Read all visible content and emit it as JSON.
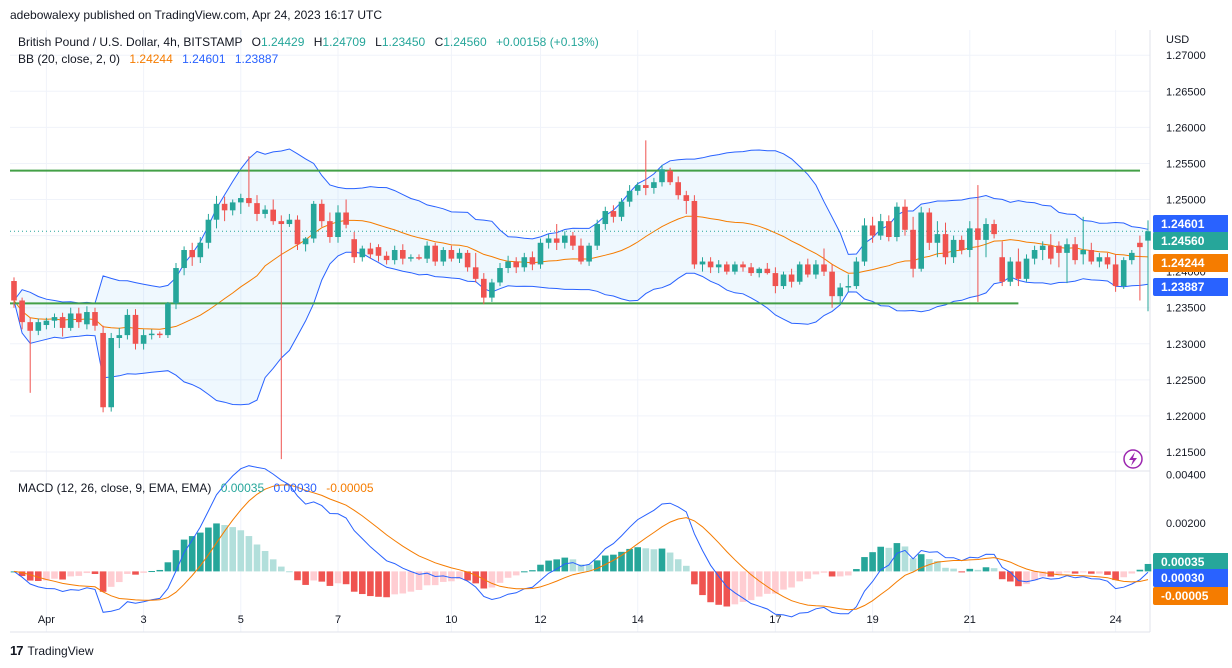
{
  "header": {
    "published": "adebowalexy published on TradingView.com, Apr 24, 2023 16:17 UTC",
    "symbol": "British Pound / U.S. Dollar, 4h, BITSTAMP",
    "o_label": "O",
    "o_value": "1.24429",
    "h_label": "H",
    "h_value": "1.24709",
    "l_label": "L",
    "l_value": "1.23450",
    "c_label": "C",
    "c_value": "1.24560",
    "change": "+0.00158 (+0.13%)",
    "bb_label": "BB (20, close, 2, 0)",
    "bb_basis": "1.24244",
    "bb_upper": "1.24601",
    "bb_lower": "1.23887",
    "macd_label": "MACD (12, 26, close, 9, EMA, EMA)",
    "macd_hist": "0.00035",
    "macd_line": "0.00030",
    "macd_signal": "-0.00005",
    "currency": "USD"
  },
  "footer": {
    "brand": "TradingView",
    "logo_icon": "tradingview-logo-icon"
  },
  "colors": {
    "up": "#26a69a",
    "down": "#ef5350",
    "band": "#2962ff",
    "basis": "#f57c00",
    "level": "#43a047",
    "hist_up": "#26a69a",
    "hist_up_fade": "#b2dfdb",
    "hist_down": "#ef5350",
    "hist_down_fade": "#ffcdd2",
    "macd": "#2962ff",
    "signal": "#f57c00"
  },
  "chart_data": {
    "type": "candlestick",
    "instrument": "GBPUSD",
    "timeframe": "4h",
    "price_axis": {
      "ticks": [
        "1.27000",
        "1.26500",
        "1.26000",
        "1.25500",
        "1.25000",
        "1.24500",
        "1.24000",
        "1.23500",
        "1.23000",
        "1.22500",
        "1.22000",
        "1.21500"
      ],
      "range": [
        1.2125,
        1.2735
      ]
    },
    "macd_axis": {
      "ticks": [
        "0.00400",
        "0.00200"
      ],
      "range": [
        -0.0025,
        0.0041
      ]
    },
    "x_labels": [
      {
        "label": "Apr",
        "index": 4
      },
      {
        "label": "3",
        "index": 16
      },
      {
        "label": "5",
        "index": 28
      },
      {
        "label": "7",
        "index": 40
      },
      {
        "label": "10",
        "index": 54
      },
      {
        "label": "12",
        "index": 65
      },
      {
        "label": "14",
        "index": 77
      },
      {
        "label": "17",
        "index": 94
      },
      {
        "label": "19",
        "index": 106
      },
      {
        "label": "21",
        "index": 118
      },
      {
        "label": "24",
        "index": 136
      }
    ],
    "support_level": 1.2356,
    "resistance_level": 1.254,
    "last_price": 1.2456,
    "badges": [
      {
        "value": "1.24601",
        "kind": "band"
      },
      {
        "value": "1.24560",
        "kind": "up"
      },
      {
        "value": "1.24244",
        "kind": "basis"
      },
      {
        "value": "1.23887",
        "kind": "band"
      },
      {
        "value": "0.00035",
        "kind": "up"
      },
      {
        "value": "0.00030",
        "kind": "band"
      },
      {
        "value": "-0.00005",
        "kind": "basis"
      }
    ],
    "candles": [
      [
        1.2387,
        1.2392,
        1.235,
        1.236
      ],
      [
        1.236,
        1.2364,
        1.232,
        1.233
      ],
      [
        1.233,
        1.2336,
        1.2232,
        1.2318
      ],
      [
        1.2318,
        1.2335,
        1.2312,
        1.233
      ],
      [
        1.2326,
        1.2336,
        1.232,
        1.2332
      ],
      [
        1.2332,
        1.2342,
        1.2322,
        1.2337
      ],
      [
        1.2337,
        1.2343,
        1.231,
        1.2322
      ],
      [
        1.2322,
        1.235,
        1.2318,
        1.2342
      ],
      [
        1.2342,
        1.235,
        1.2322,
        1.233
      ],
      [
        1.2327,
        1.2352,
        1.232,
        1.2344
      ],
      [
        1.2344,
        1.235,
        1.2318,
        1.2325
      ],
      [
        1.2315,
        1.2325,
        1.2205,
        1.2212
      ],
      [
        1.2212,
        1.2315,
        1.2206,
        1.2308
      ],
      [
        1.2308,
        1.2322,
        1.2294,
        1.2312
      ],
      [
        1.2312,
        1.2348,
        1.2306,
        1.234
      ],
      [
        1.234,
        1.2348,
        1.2292,
        1.23
      ],
      [
        1.23,
        1.232,
        1.2292,
        1.2312
      ],
      [
        1.2312,
        1.232,
        1.2306,
        1.2314
      ],
      [
        1.2314,
        1.2317,
        1.2308,
        1.2312
      ],
      [
        1.2312,
        1.2358,
        1.2308,
        1.2356
      ],
      [
        1.2356,
        1.2412,
        1.2348,
        1.2405
      ],
      [
        1.2405,
        1.2435,
        1.2395,
        1.243
      ],
      [
        1.243,
        1.244,
        1.2408,
        1.242
      ],
      [
        1.242,
        1.2448,
        1.2412,
        1.244
      ],
      [
        1.244,
        1.248,
        1.2432,
        1.2472
      ],
      [
        1.2472,
        1.2505,
        1.246,
        1.2494
      ],
      [
        1.2494,
        1.2504,
        1.247,
        1.2485
      ],
      [
        1.2485,
        1.25,
        1.2478,
        1.2496
      ],
      [
        1.2496,
        1.2508,
        1.248,
        1.2502
      ],
      [
        1.2502,
        1.256,
        1.249,
        1.2495
      ],
      [
        1.2495,
        1.2506,
        1.247,
        1.248
      ],
      [
        1.248,
        1.2492,
        1.2474,
        1.2486
      ],
      [
        1.2486,
        1.25,
        1.2465,
        1.247
      ],
      [
        1.247,
        1.2478,
        1.214,
        1.2466
      ],
      [
        1.2466,
        1.248,
        1.2462,
        1.2472
      ],
      [
        1.2472,
        1.2478,
        1.243,
        1.2438
      ],
      [
        1.2438,
        1.2448,
        1.2428,
        1.2446
      ],
      [
        1.2446,
        1.2498,
        1.244,
        1.2494
      ],
      [
        1.2494,
        1.25,
        1.2462,
        1.247
      ],
      [
        1.247,
        1.2482,
        1.244,
        1.2448
      ],
      [
        1.2448,
        1.2492,
        1.244,
        1.2482
      ],
      [
        1.2482,
        1.25,
        1.246,
        1.2465
      ],
      [
        1.2445,
        1.2455,
        1.2412,
        1.242
      ],
      [
        1.242,
        1.2436,
        1.2414,
        1.2432
      ],
      [
        1.2432,
        1.244,
        1.2418,
        1.2424
      ],
      [
        1.2434,
        1.2438,
        1.2414,
        1.2422
      ],
      [
        1.2422,
        1.2428,
        1.241,
        1.2416
      ],
      [
        1.2416,
        1.2436,
        1.241,
        1.243
      ],
      [
        1.243,
        1.2438,
        1.241,
        1.2418
      ],
      [
        1.2418,
        1.2424,
        1.2414,
        1.242
      ],
      [
        1.242,
        1.2424,
        1.2416,
        1.2418
      ],
      [
        1.2418,
        1.2442,
        1.2412,
        1.2436
      ],
      [
        1.2436,
        1.244,
        1.2408,
        1.2414
      ],
      [
        1.2414,
        1.2434,
        1.2408,
        1.243
      ],
      [
        1.243,
        1.2436,
        1.2414,
        1.2418
      ],
      [
        1.2418,
        1.2432,
        1.2412,
        1.2426
      ],
      [
        1.2426,
        1.243,
        1.24,
        1.2406
      ],
      [
        1.2406,
        1.2426,
        1.2385,
        1.239
      ],
      [
        1.239,
        1.2398,
        1.2355,
        1.2364
      ],
      [
        1.2364,
        1.239,
        1.2358,
        1.2385
      ],
      [
        1.2385,
        1.2412,
        1.238,
        1.2405
      ],
      [
        1.2405,
        1.2422,
        1.2398,
        1.2414
      ],
      [
        1.2414,
        1.242,
        1.2398,
        1.2406
      ],
      [
        1.2406,
        1.2426,
        1.24,
        1.242
      ],
      [
        1.242,
        1.2428,
        1.2402,
        1.241
      ],
      [
        1.241,
        1.2446,
        1.2404,
        1.244
      ],
      [
        1.244,
        1.2452,
        1.2432,
        1.2446
      ],
      [
        1.2446,
        1.2466,
        1.243,
        1.244
      ],
      [
        1.244,
        1.2456,
        1.2432,
        1.245
      ],
      [
        1.245,
        1.2455,
        1.243,
        1.2436
      ],
      [
        1.2436,
        1.2446,
        1.241,
        1.2414
      ],
      [
        1.2414,
        1.244,
        1.2408,
        1.2436
      ],
      [
        1.2436,
        1.2472,
        1.243,
        1.2466
      ],
      [
        1.2466,
        1.249,
        1.2458,
        1.2484
      ],
      [
        1.2484,
        1.2492,
        1.2468,
        1.2476
      ],
      [
        1.2476,
        1.2502,
        1.247,
        1.2497
      ],
      [
        1.2497,
        1.252,
        1.249,
        1.2512
      ],
      [
        1.2512,
        1.2524,
        1.2506,
        1.252
      ],
      [
        1.252,
        1.2582,
        1.2506,
        1.2516
      ],
      [
        1.2516,
        1.253,
        1.2508,
        1.2524
      ],
      [
        1.2524,
        1.2548,
        1.2518,
        1.2542
      ],
      [
        1.254,
        1.2544,
        1.252,
        1.2524
      ],
      [
        1.2524,
        1.2532,
        1.25,
        1.2506
      ],
      [
        1.2506,
        1.2512,
        1.248,
        1.2498
      ],
      [
        1.2498,
        1.2506,
        1.2404,
        1.241
      ],
      [
        1.241,
        1.242,
        1.24,
        1.2414
      ],
      [
        1.2414,
        1.242,
        1.2398,
        1.2406
      ],
      [
        1.2406,
        1.2416,
        1.2398,
        1.241
      ],
      [
        1.241,
        1.2414,
        1.2396,
        1.24
      ],
      [
        1.24,
        1.2414,
        1.2396,
        1.241
      ],
      [
        1.241,
        1.2414,
        1.24,
        1.2406
      ],
      [
        1.2406,
        1.2412,
        1.2394,
        1.2398
      ],
      [
        1.2398,
        1.2406,
        1.2392,
        1.2404
      ],
      [
        1.2404,
        1.2412,
        1.2396,
        1.2398
      ],
      [
        1.2398,
        1.2406,
        1.237,
        1.238
      ],
      [
        1.238,
        1.24,
        1.2376,
        1.2396
      ],
      [
        1.2396,
        1.2404,
        1.2378,
        1.2386
      ],
      [
        1.2386,
        1.2414,
        1.2382,
        1.241
      ],
      [
        1.241,
        1.2418,
        1.2392,
        1.2396
      ],
      [
        1.2396,
        1.2416,
        1.239,
        1.241
      ],
      [
        1.241,
        1.2432,
        1.2394,
        1.24
      ],
      [
        1.24,
        1.241,
        1.235,
        1.2366
      ],
      [
        1.2366,
        1.2384,
        1.2354,
        1.2378
      ],
      [
        1.2378,
        1.2396,
        1.2372,
        1.238
      ],
      [
        1.238,
        1.242,
        1.2376,
        1.2414
      ],
      [
        1.2414,
        1.2474,
        1.2408,
        1.2464
      ],
      [
        1.2464,
        1.2476,
        1.244,
        1.245
      ],
      [
        1.245,
        1.248,
        1.2444,
        1.247
      ],
      [
        1.247,
        1.2478,
        1.2442,
        1.2448
      ],
      [
        1.2448,
        1.2496,
        1.2442,
        1.249
      ],
      [
        1.249,
        1.25,
        1.245,
        1.2458
      ],
      [
        1.2458,
        1.2476,
        1.2392,
        1.2404
      ],
      [
        1.2404,
        1.249,
        1.24,
        1.2482
      ],
      [
        1.2482,
        1.2488,
        1.243,
        1.244
      ],
      [
        1.244,
        1.247,
        1.242,
        1.2452
      ],
      [
        1.2452,
        1.2468,
        1.241,
        1.242
      ],
      [
        1.242,
        1.245,
        1.2412,
        1.2444
      ],
      [
        1.2444,
        1.245,
        1.2424,
        1.243
      ],
      [
        1.243,
        1.247,
        1.242,
        1.246
      ],
      [
        1.246,
        1.252,
        1.2358,
        1.2444
      ],
      [
        1.2444,
        1.2474,
        1.242,
        1.2466
      ],
      [
        1.2466,
        1.2472,
        1.2446,
        1.2452
      ],
      [
        1.242,
        1.2442,
        1.238,
        1.2386
      ],
      [
        1.2386,
        1.242,
        1.238,
        1.2414
      ],
      [
        1.2414,
        1.2432,
        1.238,
        1.239
      ],
      [
        1.239,
        1.2424,
        1.2386,
        1.2418
      ],
      [
        1.2418,
        1.2436,
        1.241,
        1.243
      ],
      [
        1.243,
        1.2442,
        1.2416,
        1.2436
      ],
      [
        1.2436,
        1.2452,
        1.241,
        1.2418
      ],
      [
        1.2436,
        1.2442,
        1.2406,
        1.2426
      ],
      [
        1.2426,
        1.2446,
        1.2384,
        1.2438
      ],
      [
        1.2438,
        1.2448,
        1.241,
        1.2416
      ],
      [
        1.2424,
        1.2476,
        1.241,
        1.243
      ],
      [
        1.243,
        1.244,
        1.241,
        1.2414
      ],
      [
        1.2414,
        1.2426,
        1.2406,
        1.242
      ],
      [
        1.242,
        1.2426,
        1.2404,
        1.241
      ],
      [
        1.241,
        1.2424,
        1.2372,
        1.238
      ],
      [
        1.238,
        1.242,
        1.2376,
        1.2416
      ],
      [
        1.2416,
        1.243,
        1.241,
        1.2426
      ],
      [
        1.244,
        1.245,
        1.236,
        1.2434
      ],
      [
        1.2443,
        1.2471,
        1.2345,
        1.2456
      ]
    ]
  }
}
